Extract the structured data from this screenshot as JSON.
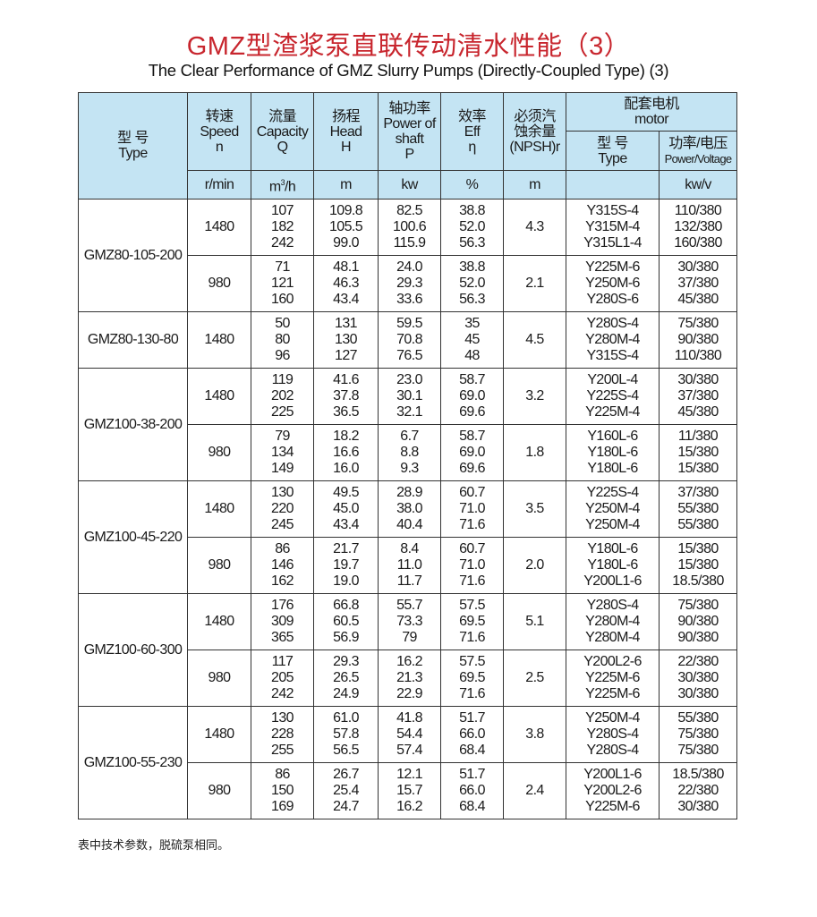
{
  "title": "GMZ型渣浆泵直联传动清水性能（3）",
  "subtitle": "The Clear Performance of GMZ Slurry Pumps (Directly-Coupled Type) (3)",
  "header": {
    "type": [
      "型 号",
      "Type"
    ],
    "speed": [
      "转速",
      "Speed",
      "n"
    ],
    "capacity": [
      "流量",
      "Capacity",
      "Q"
    ],
    "head": [
      "扬程",
      "Head",
      "H"
    ],
    "power": [
      "轴功率",
      "Power of",
      "shaft",
      "P"
    ],
    "eff": [
      "效率",
      "Eff",
      "η"
    ],
    "npsh": [
      "必须汽",
      "蚀余量",
      "(NPSH)r"
    ],
    "motor": [
      "配套电机",
      "motor"
    ],
    "motor_type": [
      "型 号",
      "Type"
    ],
    "motor_pv": [
      "功率/电压",
      "Power/Voltage"
    ],
    "units": {
      "speed": "r/min",
      "capacity_base": "m",
      "capacity_sup": "3",
      "capacity_tail": "/h",
      "head": "m",
      "power": "kw",
      "eff": "%",
      "npsh": "m",
      "motor_type": "",
      "motor_pv": "kw/v"
    }
  },
  "colors": {
    "title": "#c8262e",
    "header_bg": "#c4e4f3"
  },
  "models": [
    {
      "type": "GMZ80-105-200",
      "groups": [
        {
          "speed": "1480",
          "npsh": "4.3",
          "q": [
            "107",
            "182",
            "242"
          ],
          "h": [
            "109.8",
            "105.5",
            "99.0"
          ],
          "p": [
            "82.5",
            "100.6",
            "115.9"
          ],
          "eff": [
            "38.8",
            "52.0",
            "56.3"
          ],
          "motor": [
            "Y315S-4",
            "Y315M-4",
            "Y315L1-4"
          ],
          "pv": [
            "110/380",
            "132/380",
            "160/380"
          ]
        },
        {
          "speed": "980",
          "npsh": "2.1",
          "q": [
            "71",
            "121",
            "160"
          ],
          "h": [
            "48.1",
            "46.3",
            "43.4"
          ],
          "p": [
            "24.0",
            "29.3",
            "33.6"
          ],
          "eff": [
            "38.8",
            "52.0",
            "56.3"
          ],
          "motor": [
            "Y225M-6",
            "Y250M-6",
            "Y280S-6"
          ],
          "pv": [
            "30/380",
            "37/380",
            "45/380"
          ]
        }
      ]
    },
    {
      "type": "GMZ80-130-80",
      "groups": [
        {
          "speed": "1480",
          "npsh": "4.5",
          "q": [
            "50",
            "80",
            "96"
          ],
          "h": [
            "131",
            "130",
            "127"
          ],
          "p": [
            "59.5",
            "70.8",
            "76.5"
          ],
          "eff": [
            "35",
            "45",
            "48"
          ],
          "motor": [
            "Y280S-4",
            "Y280M-4",
            "Y315S-4"
          ],
          "pv": [
            "75/380",
            "90/380",
            "110/380"
          ]
        }
      ]
    },
    {
      "type": "GMZ100-38-200",
      "groups": [
        {
          "speed": "1480",
          "npsh": "3.2",
          "q": [
            "119",
            "202",
            "225"
          ],
          "h": [
            "41.6",
            "37.8",
            "36.5"
          ],
          "p": [
            "23.0",
            "30.1",
            "32.1"
          ],
          "eff": [
            "58.7",
            "69.0",
            "69.6"
          ],
          "motor": [
            "Y200L-4",
            "Y225S-4",
            "Y225M-4"
          ],
          "pv": [
            "30/380",
            "37/380",
            "45/380"
          ]
        },
        {
          "speed": "980",
          "npsh": "1.8",
          "q": [
            "79",
            "134",
            "149"
          ],
          "h": [
            "18.2",
            "16.6",
            "16.0"
          ],
          "p": [
            "6.7",
            "8.8",
            "9.3"
          ],
          "eff": [
            "58.7",
            "69.0",
            "69.6"
          ],
          "motor": [
            "Y160L-6",
            "Y180L-6",
            "Y180L-6"
          ],
          "pv": [
            "11/380",
            "15/380",
            "15/380"
          ]
        }
      ]
    },
    {
      "type": "GMZ100-45-220",
      "groups": [
        {
          "speed": "1480",
          "npsh": "3.5",
          "q": [
            "130",
            "220",
            "245"
          ],
          "h": [
            "49.5",
            "45.0",
            "43.4"
          ],
          "p": [
            "28.9",
            "38.0",
            "40.4"
          ],
          "eff": [
            "60.7",
            "71.0",
            "71.6"
          ],
          "motor": [
            "Y225S-4",
            "Y250M-4",
            "Y250M-4"
          ],
          "pv": [
            "37/380",
            "55/380",
            "55/380"
          ]
        },
        {
          "speed": "980",
          "npsh": "2.0",
          "q": [
            "86",
            "146",
            "162"
          ],
          "h": [
            "21.7",
            "19.7",
            "19.0"
          ],
          "p": [
            "8.4",
            "11.0",
            "11.7"
          ],
          "eff": [
            "60.7",
            "71.0",
            "71.6"
          ],
          "motor": [
            "Y180L-6",
            "Y180L-6",
            "Y200L1-6"
          ],
          "pv": [
            "15/380",
            "15/380",
            "18.5/380"
          ]
        }
      ]
    },
    {
      "type": "GMZ100-60-300",
      "groups": [
        {
          "speed": "1480",
          "npsh": "5.1",
          "q": [
            "176",
            "309",
            "365"
          ],
          "h": [
            "66.8",
            "60.5",
            "56.9"
          ],
          "p": [
            "55.7",
            "73.3",
            "79"
          ],
          "eff": [
            "57.5",
            "69.5",
            "71.6"
          ],
          "motor": [
            "Y280S-4",
            "Y280M-4",
            "Y280M-4"
          ],
          "pv": [
            "75/380",
            "90/380",
            "90/380"
          ]
        },
        {
          "speed": "980",
          "npsh": "2.5",
          "q": [
            "117",
            "205",
            "242"
          ],
          "h": [
            "29.3",
            "26.5",
            "24.9"
          ],
          "p": [
            "16.2",
            "21.3",
            "22.9"
          ],
          "eff": [
            "57.5",
            "69.5",
            "71.6"
          ],
          "motor": [
            "Y200L2-6",
            "Y225M-6",
            "Y225M-6"
          ],
          "pv": [
            "22/380",
            "30/380",
            "30/380"
          ]
        }
      ]
    },
    {
      "type": "GMZ100-55-230",
      "groups": [
        {
          "speed": "1480",
          "npsh": "3.8",
          "q": [
            "130",
            "228",
            "255"
          ],
          "h": [
            "61.0",
            "57.8",
            "56.5"
          ],
          "p": [
            "41.8",
            "54.4",
            "57.4"
          ],
          "eff": [
            "51.7",
            "66.0",
            "68.4"
          ],
          "motor": [
            "Y250M-4",
            "Y280S-4",
            "Y280S-4"
          ],
          "pv": [
            "55/380",
            "75/380",
            "75/380"
          ]
        },
        {
          "speed": "980",
          "npsh": "2.4",
          "q": [
            "86",
            "150",
            "169"
          ],
          "h": [
            "26.7",
            "25.4",
            "24.7"
          ],
          "p": [
            "12.1",
            "15.7",
            "16.2"
          ],
          "eff": [
            "51.7",
            "66.0",
            "68.4"
          ],
          "motor": [
            "Y200L1-6",
            "Y200L2-6",
            "Y225M-6"
          ],
          "pv": [
            "18.5/380",
            "22/380",
            "30/380"
          ]
        }
      ]
    }
  ],
  "footnote": "表中技术参数，脱硫泵相同。"
}
